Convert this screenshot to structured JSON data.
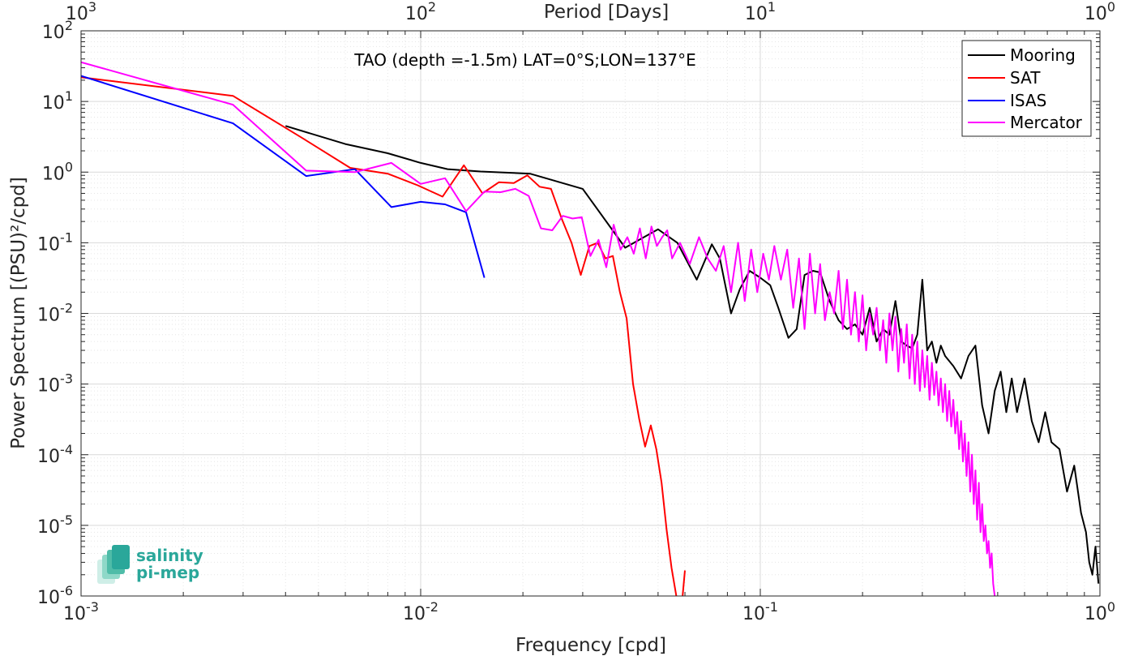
{
  "chart_data": {
    "type": "line",
    "title": "TAO (depth =-1.5m) LAT=0°S;LON=137°E",
    "xlabel": "Frequency [cpd]",
    "ylabel": "Power Spectrum [(PSU)²/cpd]",
    "x2label": "Period [Days]",
    "xscale": "log",
    "yscale": "log",
    "xlim": [
      0.001,
      1
    ],
    "ylim": [
      1e-06,
      100
    ],
    "grid": true,
    "legend_position": "top-right",
    "x_ticks": [
      {
        "base": "10",
        "exp": "-3"
      },
      {
        "base": "10",
        "exp": "-2"
      },
      {
        "base": "10",
        "exp": "-1"
      },
      {
        "base": "10",
        "exp": "0"
      }
    ],
    "x2_ticks": [
      {
        "base": "10",
        "exp": "3"
      },
      {
        "base": "10",
        "exp": "2"
      },
      {
        "base": "10",
        "exp": "1"
      },
      {
        "base": "10",
        "exp": "0"
      }
    ],
    "y_ticks": [
      {
        "base": "10",
        "exp": "2"
      },
      {
        "base": "10",
        "exp": "1"
      },
      {
        "base": "10",
        "exp": "0"
      },
      {
        "base": "10",
        "exp": "-1"
      },
      {
        "base": "10",
        "exp": "-2"
      },
      {
        "base": "10",
        "exp": "-3"
      },
      {
        "base": "10",
        "exp": "-4"
      },
      {
        "base": "10",
        "exp": "-5"
      },
      {
        "base": "10",
        "exp": "-6"
      }
    ],
    "series": [
      {
        "name": "Mooring",
        "color": "#000000",
        "x": [
          0.004,
          0.006,
          0.008,
          0.01,
          0.012,
          0.015,
          0.021,
          0.03,
          0.04,
          0.044,
          0.05,
          0.057,
          0.065,
          0.072,
          0.076,
          0.082,
          0.087,
          0.093,
          0.1,
          0.107,
          0.113,
          0.121,
          0.128,
          0.135,
          0.143,
          0.15,
          0.16,
          0.17,
          0.18,
          0.19,
          0.2,
          0.21,
          0.22,
          0.23,
          0.24,
          0.25,
          0.26,
          0.27,
          0.28,
          0.29,
          0.3,
          0.31,
          0.32,
          0.33,
          0.34,
          0.35,
          0.37,
          0.39,
          0.41,
          0.43,
          0.45,
          0.47,
          0.49,
          0.51,
          0.53,
          0.55,
          0.57,
          0.6,
          0.63,
          0.66,
          0.69,
          0.72,
          0.76,
          0.8,
          0.84,
          0.88,
          0.91,
          0.93,
          0.95,
          0.97,
          0.99
        ],
        "values": [
          4.5,
          2.5,
          1.85,
          1.35,
          1.1,
          1.02,
          0.95,
          0.58,
          0.085,
          0.11,
          0.155,
          0.1,
          0.03,
          0.095,
          0.06,
          0.01,
          0.022,
          0.04,
          0.032,
          0.025,
          0.012,
          0.0045,
          0.006,
          0.035,
          0.04,
          0.038,
          0.015,
          0.008,
          0.006,
          0.007,
          0.005,
          0.012,
          0.004,
          0.006,
          0.005,
          0.015,
          0.004,
          0.0035,
          0.0032,
          0.005,
          0.03,
          0.003,
          0.004,
          0.002,
          0.0035,
          0.0025,
          0.0018,
          0.0012,
          0.0025,
          0.0035,
          0.0005,
          0.0002,
          0.0008,
          0.0015,
          0.0004,
          0.0012,
          0.0004,
          0.0012,
          0.0003,
          0.00015,
          0.0004,
          0.00015,
          0.00012,
          3e-05,
          7e-05,
          1.5e-05,
          8e-06,
          3e-06,
          2e-06,
          5e-06,
          1.5e-06
        ]
      },
      {
        "name": "SAT",
        "color": "#ff0000",
        "x": [
          0.001,
          0.0028,
          0.0045,
          0.0062,
          0.008,
          0.0098,
          0.0116,
          0.0134,
          0.0152,
          0.017,
          0.0188,
          0.0206,
          0.0224,
          0.0242,
          0.026,
          0.0278,
          0.0296,
          0.0314,
          0.0332,
          0.035,
          0.0368,
          0.0386,
          0.0404,
          0.0422,
          0.044,
          0.0458,
          0.0476,
          0.0494,
          0.0512,
          0.053,
          0.0548,
          0.0566,
          0.0584,
          0.06
        ],
        "values": [
          22,
          12,
          3,
          1.15,
          0.95,
          0.65,
          0.45,
          1.25,
          0.5,
          0.72,
          0.7,
          0.9,
          0.62,
          0.58,
          0.22,
          0.1,
          0.035,
          0.09,
          0.1,
          0.06,
          0.065,
          0.02,
          0.0085,
          0.001,
          0.00032,
          0.00013,
          0.00026,
          0.00012,
          4e-05,
          8.5e-06,
          2.5e-06,
          1e-06,
          5.5e-07,
          2.3e-06
        ]
      },
      {
        "name": "ISAS",
        "color": "#0000ff",
        "x": [
          0.001,
          0.0028,
          0.0046,
          0.0064,
          0.0082,
          0.01,
          0.0118,
          0.0136,
          0.0154
        ],
        "values": [
          23,
          4.9,
          0.88,
          1.1,
          0.32,
          0.38,
          0.35,
          0.27,
          0.032
        ]
      },
      {
        "name": "Mercator",
        "color": "#ff00ff",
        "x": [
          0.001,
          0.0028,
          0.0046,
          0.0064,
          0.0082,
          0.01,
          0.0118,
          0.0136,
          0.0154,
          0.0172,
          0.019,
          0.0208,
          0.0226,
          0.0244,
          0.0262,
          0.028,
          0.0298,
          0.0316,
          0.0334,
          0.0352,
          0.037,
          0.0388,
          0.0406,
          0.0424,
          0.0442,
          0.046,
          0.0478,
          0.0496,
          0.0514,
          0.0532,
          0.055,
          0.058,
          0.062,
          0.066,
          0.07,
          0.074,
          0.078,
          0.082,
          0.086,
          0.09,
          0.094,
          0.098,
          0.102,
          0.106,
          0.11,
          0.115,
          0.12,
          0.125,
          0.13,
          0.135,
          0.14,
          0.145,
          0.15,
          0.155,
          0.16,
          0.165,
          0.17,
          0.175,
          0.18,
          0.185,
          0.19,
          0.195,
          0.2,
          0.205,
          0.21,
          0.215,
          0.22,
          0.225,
          0.23,
          0.235,
          0.24,
          0.245,
          0.25,
          0.255,
          0.26,
          0.265,
          0.27,
          0.275,
          0.28,
          0.285,
          0.29,
          0.295,
          0.3,
          0.305,
          0.31,
          0.315,
          0.32,
          0.325,
          0.33,
          0.335,
          0.34,
          0.345,
          0.35,
          0.355,
          0.36,
          0.365,
          0.37,
          0.375,
          0.38,
          0.385,
          0.39,
          0.395,
          0.4,
          0.405,
          0.41,
          0.415,
          0.42,
          0.425,
          0.43,
          0.435,
          0.44,
          0.445,
          0.45,
          0.455,
          0.46,
          0.465,
          0.47,
          0.475,
          0.48,
          0.485,
          0.49
        ],
        "values": [
          36,
          9,
          1.05,
          1.0,
          1.35,
          0.68,
          0.82,
          0.28,
          0.53,
          0.52,
          0.58,
          0.46,
          0.16,
          0.15,
          0.24,
          0.22,
          0.23,
          0.065,
          0.11,
          0.045,
          0.18,
          0.08,
          0.12,
          0.07,
          0.16,
          0.06,
          0.17,
          0.09,
          0.12,
          0.15,
          0.06,
          0.1,
          0.05,
          0.12,
          0.06,
          0.04,
          0.09,
          0.02,
          0.1,
          0.015,
          0.08,
          0.02,
          0.07,
          0.03,
          0.09,
          0.03,
          0.08,
          0.012,
          0.06,
          0.006,
          0.07,
          0.01,
          0.05,
          0.008,
          0.02,
          0.01,
          0.04,
          0.006,
          0.03,
          0.005,
          0.02,
          0.004,
          0.018,
          0.003,
          0.01,
          0.005,
          0.012,
          0.003,
          0.008,
          0.002,
          0.01,
          0.003,
          0.009,
          0.0015,
          0.006,
          0.002,
          0.007,
          0.0012,
          0.005,
          0.001,
          0.004,
          0.0008,
          0.003,
          0.0009,
          0.0025,
          0.0006,
          0.002,
          0.0007,
          0.0015,
          0.0005,
          0.0012,
          0.0004,
          0.001,
          0.0003,
          0.0008,
          0.00025,
          0.0006,
          0.0002,
          0.0004,
          0.00012,
          0.0003,
          8e-05,
          0.0002,
          5e-05,
          0.00015,
          3e-05,
          0.0001,
          2e-05,
          6e-05,
          1.2e-05,
          4e-05,
          8e-06,
          2e-05,
          6e-06,
          1e-05,
          4e-06,
          6e-06,
          2.5e-06,
          4e-06,
          1.5e-06,
          1e-06
        ]
      }
    ]
  },
  "logo": {
    "line1": "salinity",
    "line2": "pi-mep",
    "color": "#2aa79a"
  }
}
